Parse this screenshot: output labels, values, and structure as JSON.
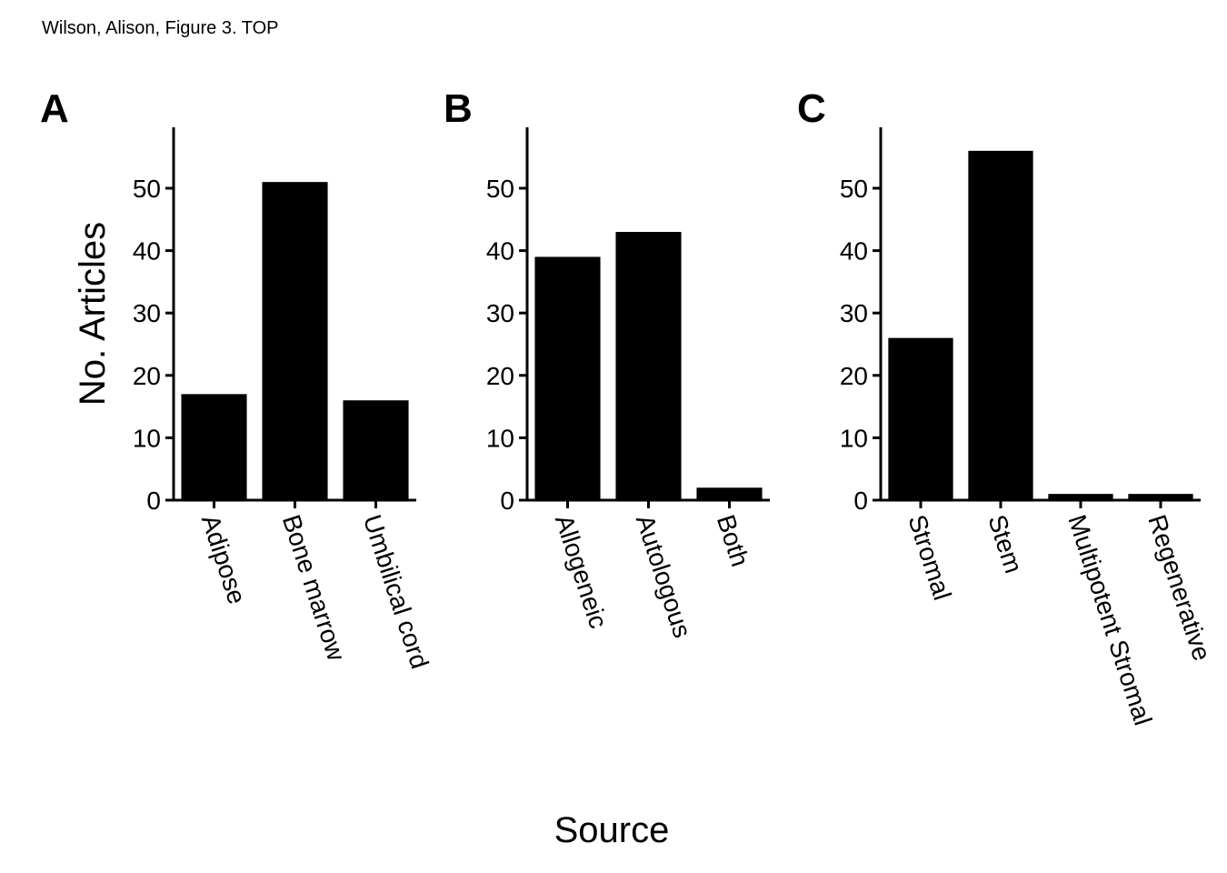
{
  "caption": "Wilson, Alison, Figure 3. TOP",
  "chart_data": [
    {
      "type": "bar",
      "panel": "A",
      "categories": [
        "Adipose",
        "Bone marrow",
        "Umbilical cord"
      ],
      "values": [
        17,
        51,
        16
      ],
      "ylabel": "No. Articles",
      "ylim": [
        0,
        60
      ],
      "yticks": [
        0,
        10,
        20,
        30,
        40,
        50
      ],
      "bar_color": "#000000"
    },
    {
      "type": "bar",
      "panel": "B",
      "categories": [
        "Allogeneic",
        "Autologous",
        "Both"
      ],
      "values": [
        39,
        43,
        2
      ],
      "ylim": [
        0,
        60
      ],
      "yticks": [
        0,
        10,
        20,
        30,
        40,
        50
      ],
      "bar_color": "#000000"
    },
    {
      "type": "bar",
      "panel": "C",
      "categories": [
        "Stromal",
        "Stem",
        "Multipotent Stromal",
        "Regenerative"
      ],
      "values": [
        26,
        56,
        1,
        1
      ],
      "ylim": [
        0,
        60
      ],
      "yticks": [
        0,
        10,
        20,
        30,
        40,
        50
      ],
      "bar_color": "#000000"
    }
  ],
  "xlabel": "Source"
}
